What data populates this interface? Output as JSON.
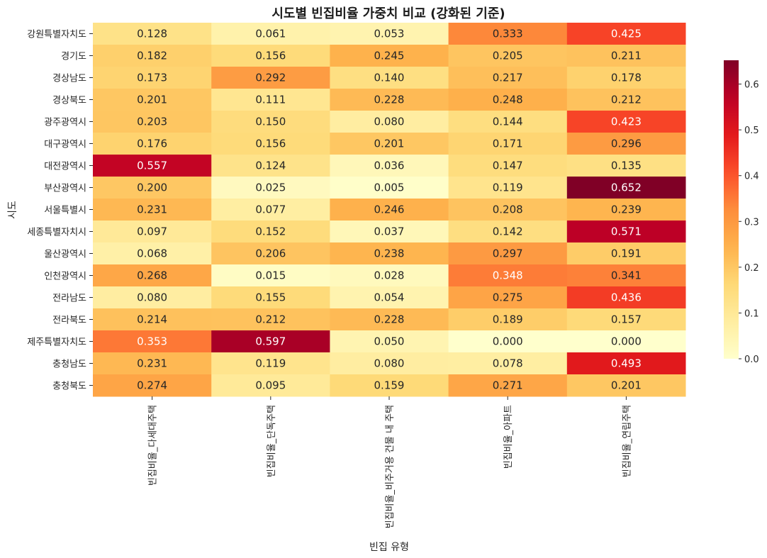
{
  "chart_data": {
    "type": "heatmap",
    "title": "시도별 빈집비율 가중치 비교 (강화된 기준)",
    "xlabel": "빈집 유형",
    "ylabel": "시도",
    "columns": [
      "빈집비율_다세대주택",
      "빈집비율_단독주택",
      "빈집비율_비주거용 건물 내 주택",
      "빈집비율_아파트",
      "빈집비율_연립주택"
    ],
    "rows": [
      "강원특별자치도",
      "경기도",
      "경상남도",
      "경상북도",
      "광주광역시",
      "대구광역시",
      "대전광역시",
      "부산광역시",
      "서울특별시",
      "세종특별자치시",
      "울산광역시",
      "인천광역시",
      "전라남도",
      "전라북도",
      "제주특별자치도",
      "충청남도",
      "충청북도"
    ],
    "values": [
      [
        0.128,
        0.061,
        0.053,
        0.333,
        0.425
      ],
      [
        0.182,
        0.156,
        0.245,
        0.205,
        0.211
      ],
      [
        0.173,
        0.292,
        0.14,
        0.217,
        0.178
      ],
      [
        0.201,
        0.111,
        0.228,
        0.248,
        0.212
      ],
      [
        0.203,
        0.15,
        0.08,
        0.144,
        0.423
      ],
      [
        0.176,
        0.156,
        0.201,
        0.171,
        0.296
      ],
      [
        0.557,
        0.124,
        0.036,
        0.147,
        0.135
      ],
      [
        0.2,
        0.025,
        0.005,
        0.119,
        0.652
      ],
      [
        0.231,
        0.077,
        0.246,
        0.208,
        0.239
      ],
      [
        0.097,
        0.152,
        0.037,
        0.142,
        0.571
      ],
      [
        0.068,
        0.206,
        0.238,
        0.297,
        0.191
      ],
      [
        0.268,
        0.015,
        0.028,
        0.348,
        0.341
      ],
      [
        0.08,
        0.155,
        0.054,
        0.275,
        0.436
      ],
      [
        0.214,
        0.212,
        0.228,
        0.189,
        0.157
      ],
      [
        0.353,
        0.597,
        0.05,
        0.0,
        0.0
      ],
      [
        0.231,
        0.119,
        0.08,
        0.078,
        0.493
      ],
      [
        0.274,
        0.095,
        0.159,
        0.271,
        0.201
      ]
    ],
    "colormap": "YlOrRd",
    "colorbar": {
      "min": 0,
      "max": 0.652,
      "ticks": [
        "0.0",
        "0.1",
        "0.2",
        "0.3",
        "0.4",
        "0.5",
        "0.6"
      ]
    },
    "grid": false,
    "legend_position": "right colorbar"
  }
}
